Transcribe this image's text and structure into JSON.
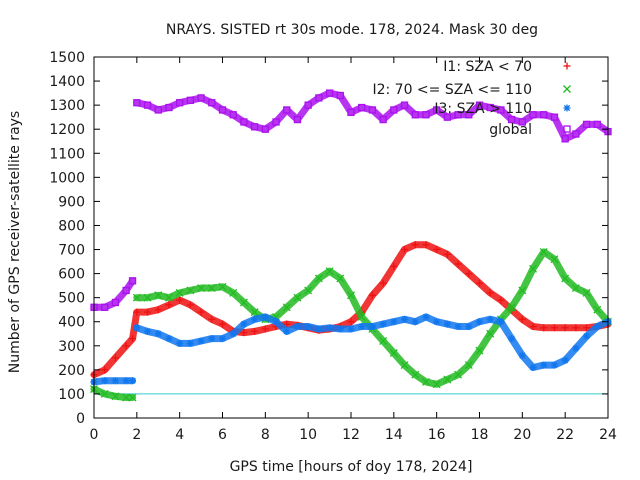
{
  "chart_data": {
    "type": "scatter",
    "title": "NRAYS. SISTED rt 30s mode. 178, 2024. Mask 30 deg",
    "xlabel": "GPS time [hours of doy 178, 2024]",
    "ylabel": "Number of GPS receiver-satellite rays",
    "xlim": [
      0,
      24
    ],
    "ylim": [
      0,
      1500
    ],
    "x_ticks": [
      0,
      2,
      4,
      6,
      8,
      10,
      12,
      14,
      16,
      18,
      20,
      22,
      24
    ],
    "y_ticks": [
      0,
      100,
      200,
      300,
      400,
      500,
      600,
      700,
      800,
      900,
      1000,
      1100,
      1200,
      1300,
      1400,
      1500
    ],
    "grid": false,
    "legend_position": "top-right",
    "reference_line": {
      "y": 100,
      "color": "#33cccc"
    },
    "series": [
      {
        "name": "I1: SZA < 70",
        "marker": "+",
        "color": "#ee1111",
        "x": [
          0,
          0.5,
          1,
          1.5,
          1.8,
          2,
          2.5,
          3,
          3.5,
          4,
          4.5,
          5,
          5.5,
          6,
          6.5,
          7,
          7.5,
          8,
          8.5,
          9,
          9.5,
          10,
          10.5,
          11,
          11.5,
          12,
          12.5,
          13,
          13.5,
          14,
          14.5,
          15,
          15.5,
          16,
          16.5,
          17,
          17.5,
          18,
          18.5,
          19,
          19.5,
          20,
          20.5,
          21,
          21.5,
          22,
          22.5,
          23,
          23.5,
          24
        ],
        "y": [
          180,
          200,
          250,
          300,
          330,
          440,
          440,
          450,
          470,
          490,
          470,
          440,
          410,
          390,
          360,
          355,
          360,
          370,
          380,
          390,
          385,
          375,
          365,
          370,
          380,
          400,
          440,
          510,
          560,
          630,
          700,
          720,
          720,
          700,
          680,
          640,
          600,
          560,
          520,
          490,
          450,
          410,
          380,
          375,
          375,
          375,
          375,
          375,
          380,
          390
        ]
      },
      {
        "name": "I2: 70 <= SZA <= 110",
        "marker": "x",
        "color": "#22bb22",
        "x": [
          0,
          0.5,
          1,
          1.5,
          1.8,
          2,
          2.5,
          3,
          3.5,
          4,
          4.5,
          5,
          5.5,
          6,
          6.5,
          7,
          7.5,
          8,
          8.5,
          9,
          9.5,
          10,
          10.5,
          11,
          11.5,
          12,
          12.5,
          13,
          13.5,
          14,
          14.5,
          15,
          15.5,
          16,
          16.5,
          17,
          17.5,
          18,
          18.5,
          19,
          19.5,
          20,
          20.5,
          21,
          21.5,
          22,
          22.5,
          23,
          23.5,
          24
        ],
        "y": [
          120,
          100,
          90,
          85,
          85,
          500,
          500,
          510,
          500,
          520,
          530,
          540,
          540,
          545,
          520,
          480,
          440,
          410,
          420,
          460,
          500,
          530,
          580,
          610,
          580,
          510,
          420,
          370,
          320,
          270,
          220,
          180,
          150,
          140,
          160,
          180,
          220,
          280,
          350,
          410,
          460,
          530,
          620,
          690,
          660,
          580,
          540,
          520,
          450,
          400
        ]
      },
      {
        "name": "I3: SZA > 110",
        "marker": "*",
        "color": "#1177ee",
        "x": [
          0,
          0.5,
          1,
          1.5,
          1.8,
          2,
          2.5,
          3,
          3.5,
          4,
          4.5,
          5,
          5.5,
          6,
          6.5,
          7,
          7.5,
          8,
          8.5,
          9,
          9.5,
          10,
          10.5,
          11,
          11.5,
          12,
          12.5,
          13,
          13.5,
          14,
          14.5,
          15,
          15.5,
          16,
          16.5,
          17,
          17.5,
          18,
          18.5,
          19,
          19.5,
          20,
          20.5,
          21,
          21.5,
          22,
          22.5,
          23,
          23.5,
          24
        ],
        "y": [
          150,
          155,
          155,
          155,
          155,
          375,
          360,
          350,
          330,
          310,
          310,
          320,
          330,
          330,
          350,
          390,
          410,
          420,
          400,
          360,
          380,
          380,
          370,
          375,
          370,
          370,
          380,
          380,
          390,
          400,
          410,
          400,
          420,
          400,
          390,
          380,
          380,
          400,
          410,
          400,
          330,
          260,
          210,
          220,
          220,
          240,
          290,
          340,
          380,
          400
        ]
      },
      {
        "name": "global",
        "marker": "square",
        "color": "#aa11ee",
        "x": [
          0,
          0.5,
          1,
          1.5,
          1.8,
          2,
          2.5,
          3,
          3.5,
          4,
          4.5,
          5,
          5.5,
          6,
          6.5,
          7,
          7.5,
          8,
          8.5,
          9,
          9.5,
          10,
          10.5,
          11,
          11.5,
          12,
          12.5,
          13,
          13.5,
          14,
          14.5,
          15,
          15.5,
          16,
          16.5,
          17,
          17.5,
          18,
          18.5,
          19,
          19.5,
          20,
          20.5,
          21,
          21.5,
          22,
          22.5,
          23,
          23.5,
          24
        ],
        "y": [
          460,
          460,
          480,
          530,
          570,
          1310,
          1300,
          1280,
          1290,
          1310,
          1320,
          1330,
          1310,
          1280,
          1260,
          1230,
          1210,
          1200,
          1230,
          1280,
          1240,
          1300,
          1330,
          1350,
          1340,
          1270,
          1290,
          1280,
          1240,
          1280,
          1300,
          1260,
          1260,
          1280,
          1250,
          1260,
          1260,
          1300,
          1290,
          1280,
          1240,
          1230,
          1260,
          1260,
          1250,
          1160,
          1180,
          1220,
          1220,
          1190
        ]
      }
    ]
  }
}
